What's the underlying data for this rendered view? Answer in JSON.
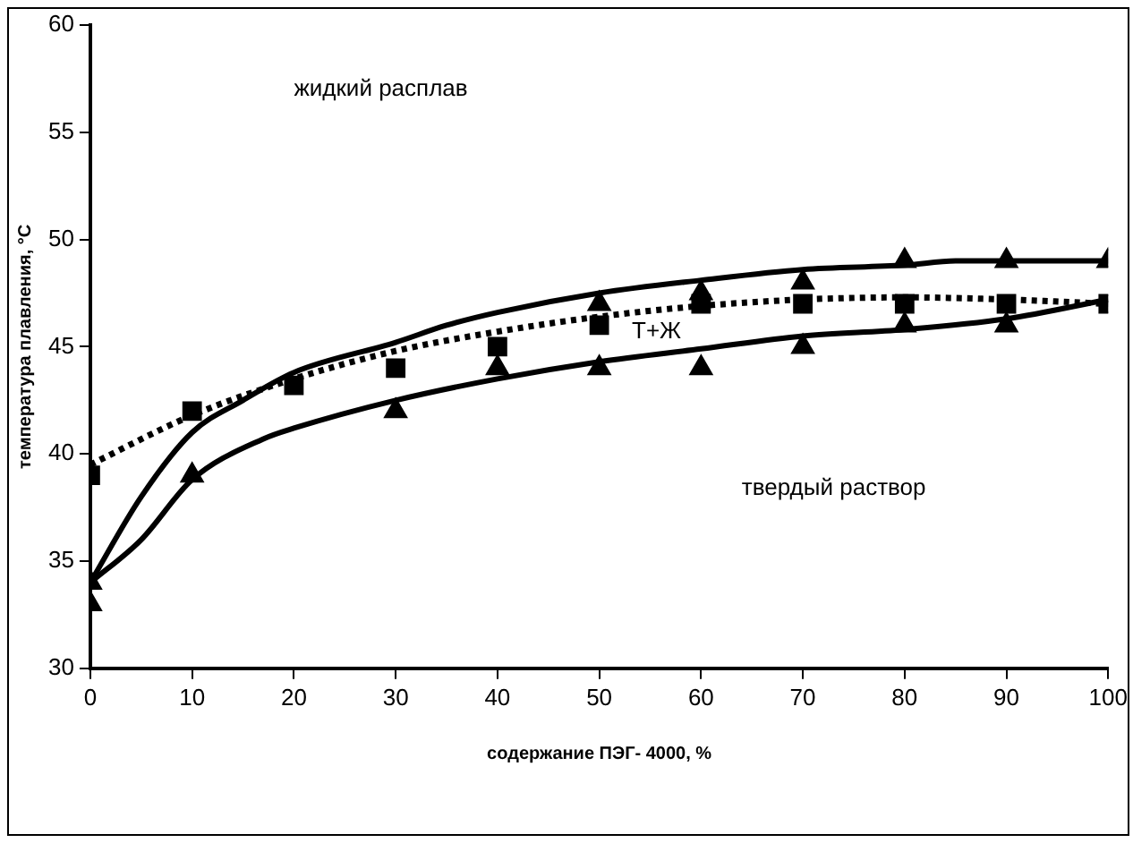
{
  "chart_data": {
    "type": "line",
    "xlabel": "содержание ПЭГ- 4000, %",
    "ylabel": "температура плавления, °С",
    "xlim": [
      0,
      100
    ],
    "xticks": [
      0,
      10,
      20,
      30,
      40,
      50,
      60,
      70,
      80,
      90,
      100
    ],
    "ylim": [
      30,
      60
    ],
    "yticks": [
      30,
      35,
      40,
      45,
      50,
      55,
      60
    ],
    "grid": false,
    "legend": false,
    "series": [
      {
        "color": "#000000",
        "line_style": "solid",
        "marker": "none",
        "x": [
          0,
          5,
          10,
          15,
          20,
          30,
          35,
          40,
          50,
          60,
          70,
          80,
          85,
          90,
          100
        ],
        "values": [
          34,
          38,
          41,
          42.5,
          43.8,
          45.2,
          46,
          46.6,
          47.5,
          48.1,
          48.6,
          48.8,
          49,
          49,
          49
        ]
      },
      {
        "color": "#000000",
        "line_style": "solid",
        "marker": "none",
        "x": [
          0,
          5,
          10,
          17,
          20,
          30,
          40,
          50,
          60,
          70,
          80,
          90,
          100
        ],
        "values": [
          34,
          36,
          38.8,
          40.7,
          41.2,
          42.5,
          43.5,
          44.3,
          44.9,
          45.5,
          45.8,
          46.3,
          47.2
        ]
      },
      {
        "color": "#000000",
        "line_style": "dotted",
        "marker": "none",
        "x": [
          0,
          10,
          20,
          30,
          40,
          50,
          60,
          70,
          80,
          90,
          100
        ],
        "values": [
          39.5,
          41.8,
          43.5,
          44.8,
          45.7,
          46.4,
          46.9,
          47.2,
          47.3,
          47.2,
          47
        ]
      },
      {
        "type": "scatter",
        "color": "#000000",
        "marker": "square",
        "x": [
          0,
          10,
          20,
          30,
          40,
          50,
          60,
          70,
          80,
          90,
          100
        ],
        "values": [
          39,
          42,
          43.2,
          44,
          45,
          46,
          47,
          47,
          47,
          47,
          47
        ]
      },
      {
        "type": "scatter",
        "color": "#000000",
        "marker": "triangle",
        "x": [
          0,
          0,
          10,
          30,
          40,
          50,
          50,
          60,
          60,
          70,
          70,
          80,
          80,
          90,
          90,
          100
        ],
        "values": [
          33,
          34,
          39,
          42,
          44,
          44,
          47,
          44,
          47.5,
          45,
          48,
          46,
          49,
          46,
          49,
          49
        ]
      }
    ],
    "annotations": [
      "жидкий расплав",
      "Т+Ж",
      "твердый раствор"
    ]
  }
}
